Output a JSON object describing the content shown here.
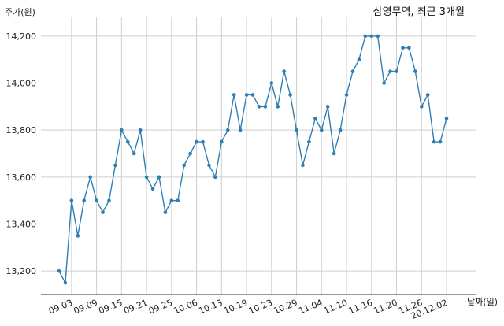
{
  "chart_data": {
    "type": "line",
    "title": "삼영무역, 최근 3개월",
    "ylabel": "주가(원)",
    "xlabel": "날짜(일)",
    "ylim": [
      13100,
      14280
    ],
    "yticks": [
      13200,
      13400,
      13600,
      13800,
      14000,
      14200
    ],
    "ytick_labels": [
      "13,200",
      "13,400",
      "13,600",
      "13,800",
      "14,000",
      "14,200"
    ],
    "xtick_labels": [
      "09.03",
      "09.09",
      "09.15",
      "09.21",
      "09.25",
      "10.06",
      "10.13",
      "10.19",
      "10.23",
      "10.29",
      "11.04",
      "11.10",
      "11.16",
      "11.20",
      "11.26",
      "20.12.02"
    ],
    "xtick_index": [
      2,
      6,
      10,
      14,
      18,
      22,
      26,
      30,
      34,
      38,
      42,
      46,
      50,
      54,
      58,
      62
    ],
    "grid": true,
    "line_color": "#2f7eb3",
    "series": [
      {
        "values": [
          13200,
          13150,
          13500,
          13350,
          13500,
          13600,
          13500,
          13450,
          13500,
          13650,
          13800,
          13750,
          13700,
          13800,
          13600,
          13550,
          13600,
          13450,
          13500,
          13500,
          13650,
          13700,
          13750,
          13750,
          13650,
          13600,
          13750,
          13800,
          13950,
          13800,
          13950,
          13950,
          13900,
          13900,
          14000,
          13900,
          14050,
          13950,
          13800,
          13650,
          13750,
          13850,
          13800,
          13900,
          13700,
          13800,
          13950,
          14050,
          14100,
          14200,
          14200,
          14200,
          14000,
          14050,
          14050,
          14150,
          14150,
          14050,
          13900,
          13950,
          13750,
          13750,
          13850
        ]
      }
    ]
  }
}
